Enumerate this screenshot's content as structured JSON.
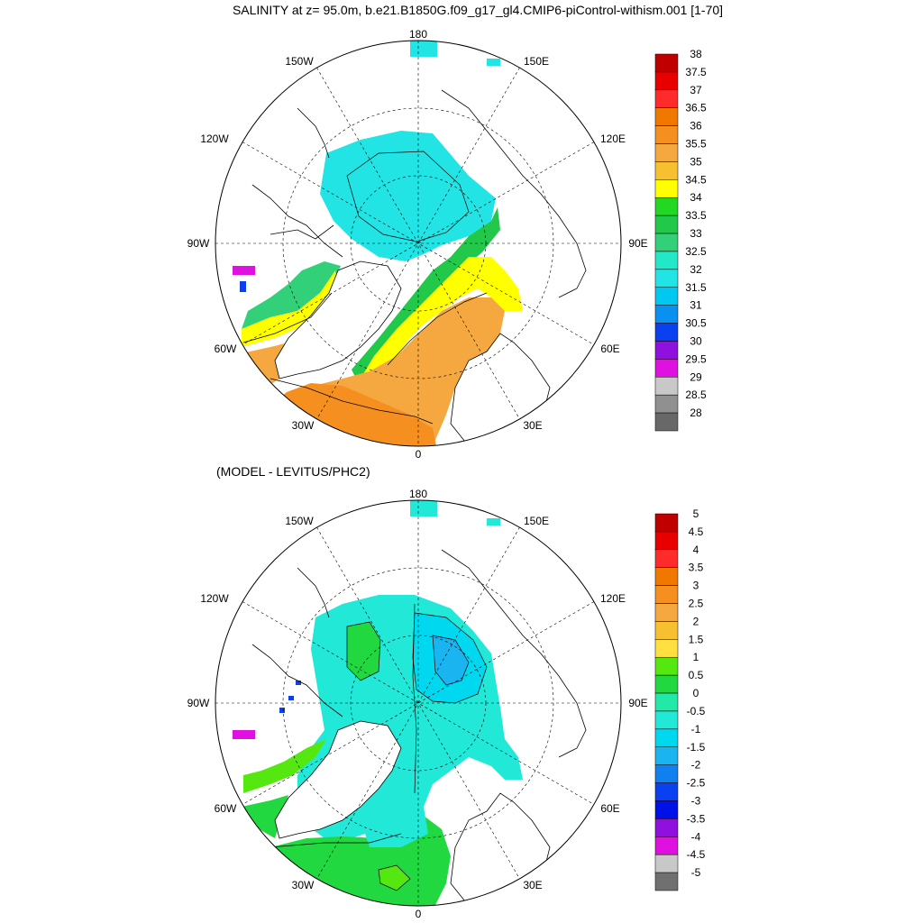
{
  "title": "SALINITY at z=  95.0m, b.e21.B1850G.f09_g17_gl4.CMIP6-piControl-withism.001 [1-70]",
  "diff_title": "(MODEL - LEVITUS/PHC2)",
  "longitude_labels": {
    "top": "180",
    "bottom": "0",
    "lon150w": "150W",
    "lon150e": "150E",
    "lon120w": "120W",
    "lon120e": "120E",
    "lon90w": "90W",
    "lon90e": "90E",
    "lon60w": "60W",
    "lon60e": "60E",
    "lon30w": "30W",
    "lon30e": "30E"
  },
  "colorbar_top": {
    "labels": [
      "38",
      "37.5",
      "37",
      "36.5",
      "36",
      "35.5",
      "35",
      "34.5",
      "34",
      "33.5",
      "33",
      "32.5",
      "32",
      "31.5",
      "31",
      "30.5",
      "30",
      "29.5",
      "29",
      "28.5",
      "28"
    ],
    "colors": [
      "#c00000",
      "#e80000",
      "#ff2a2a",
      "#f07800",
      "#f59020",
      "#f5a840",
      "#f7c030",
      "#ffff00",
      "#22d822",
      "#22c84a",
      "#33d07a",
      "#22e8c8",
      "#22e4e4",
      "#00c8f0",
      "#0a90f0",
      "#0a40f0",
      "#9010e0",
      "#e010e0",
      "#c8c8c8",
      "#909090",
      "#686868"
    ]
  },
  "colorbar_bottom": {
    "labels": [
      "5",
      "4.5",
      "4",
      "3.5",
      "3",
      "2.5",
      "2",
      "1.5",
      "1",
      "0.5",
      "0",
      "-0.5",
      "-1",
      "-1.5",
      "-2",
      "-2.5",
      "-3",
      "-3.5",
      "-4",
      "-4.5",
      "-5"
    ],
    "colors": [
      "#c00000",
      "#e80000",
      "#ff2a2a",
      "#f07800",
      "#f59020",
      "#f5a840",
      "#f7c030",
      "#ffe040",
      "#55e810",
      "#22d840",
      "#22e8a8",
      "#22e8d8",
      "#00d8f0",
      "#1ab4f0",
      "#1080f0",
      "#0a40f0",
      "#0010e8",
      "#9010e0",
      "#e010e0",
      "#c8c8c8",
      "#707070"
    ]
  },
  "colors": {
    "land": "#ffffff",
    "coast": "#000000",
    "grid": "#000000",
    "fill_cyan": "#22e4e4",
    "fill_green": "#22c84a",
    "fill_yellow": "#ffff00",
    "fill_orange": "#f5a840",
    "fill_orange_dark": "#f59020",
    "fill_light_green": "#33d07a",
    "fill_teal": "#22e8c8",
    "fill_blue": "#00c8f0",
    "fill_magenta": "#e010e0",
    "fill_deep_blue": "#0a40f0"
  }
}
